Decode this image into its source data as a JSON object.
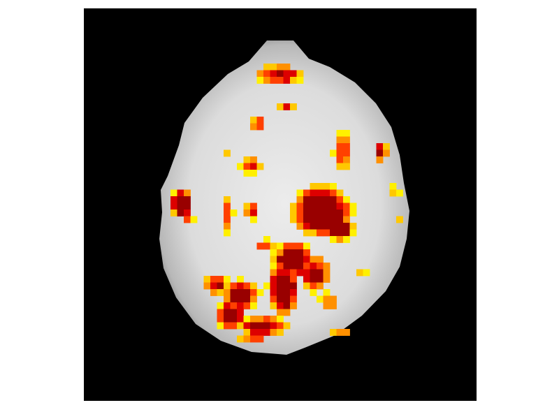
{
  "image": {
    "subject": "axial-brain-slice",
    "overlay": "activation-heatmap",
    "background_color": "#000000",
    "colormap": [
      "#990000",
      "#dd0000",
      "#ff4000",
      "#ff9000",
      "#ffc800",
      "#fff000"
    ]
  }
}
